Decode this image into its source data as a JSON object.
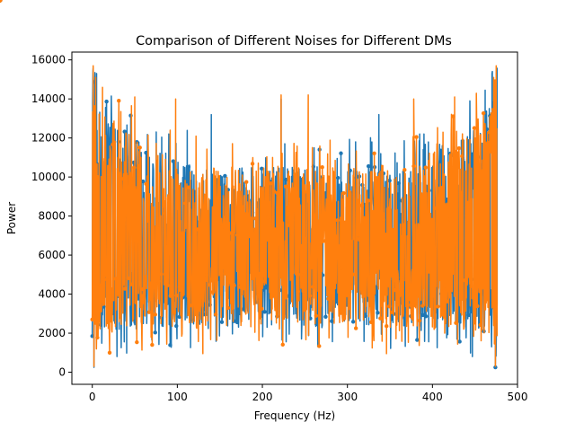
{
  "chart_data": {
    "type": "line",
    "title": "Comparison of Different Noises for Different DMs",
    "xlabel": "Frequency (Hz)",
    "ylabel": "Power",
    "xlim": [
      -24,
      500
    ],
    "ylim": [
      -620,
      16400
    ],
    "x_ticks": [
      0,
      100,
      200,
      300,
      400,
      500
    ],
    "y_ticks": [
      0,
      2000,
      4000,
      6000,
      8000,
      10000,
      12000,
      14000,
      16000
    ],
    "grid": false,
    "legend": "none",
    "x_range_data": [
      0,
      476
    ],
    "series": [
      {
        "color": "#1f77b4",
        "marker": "o",
        "y_envelope_min": 800,
        "y_envelope_max": 15700,
        "peaks": [
          {
            "x": 1,
            "y": 15600
          },
          {
            "x": 5,
            "y": 15300
          },
          {
            "x": 90,
            "y": 12200
          },
          {
            "x": 140,
            "y": 13200
          },
          {
            "x": 222,
            "y": 14000
          },
          {
            "x": 337,
            "y": 13200
          },
          {
            "x": 385,
            "y": 12200
          },
          {
            "x": 470,
            "y": 15300
          },
          {
            "x": 476,
            "y": 15600
          }
        ],
        "troughs": [
          {
            "x": 2,
            "y": 250
          },
          {
            "x": 29,
            "y": 800
          },
          {
            "x": 447,
            "y": 800
          },
          {
            "x": 474,
            "y": 250
          }
        ]
      },
      {
        "color": "#ff7f0e",
        "marker": "o",
        "y_envelope_min": 1000,
        "y_envelope_max": 15700,
        "peaks": [
          {
            "x": 1,
            "y": 15700
          },
          {
            "x": 4,
            "y": 15100
          },
          {
            "x": 50,
            "y": 14100
          },
          {
            "x": 98,
            "y": 14000
          },
          {
            "x": 222,
            "y": 14200
          },
          {
            "x": 254,
            "y": 14200
          },
          {
            "x": 378,
            "y": 14000
          },
          {
            "x": 426,
            "y": 14100
          },
          {
            "x": 472,
            "y": 15100
          },
          {
            "x": 475,
            "y": 15700
          }
        ],
        "troughs": [
          {
            "x": 2,
            "y": 300
          },
          {
            "x": 130,
            "y": 950
          },
          {
            "x": 346,
            "y": 950
          },
          {
            "x": 474,
            "y": 300
          }
        ]
      }
    ]
  }
}
